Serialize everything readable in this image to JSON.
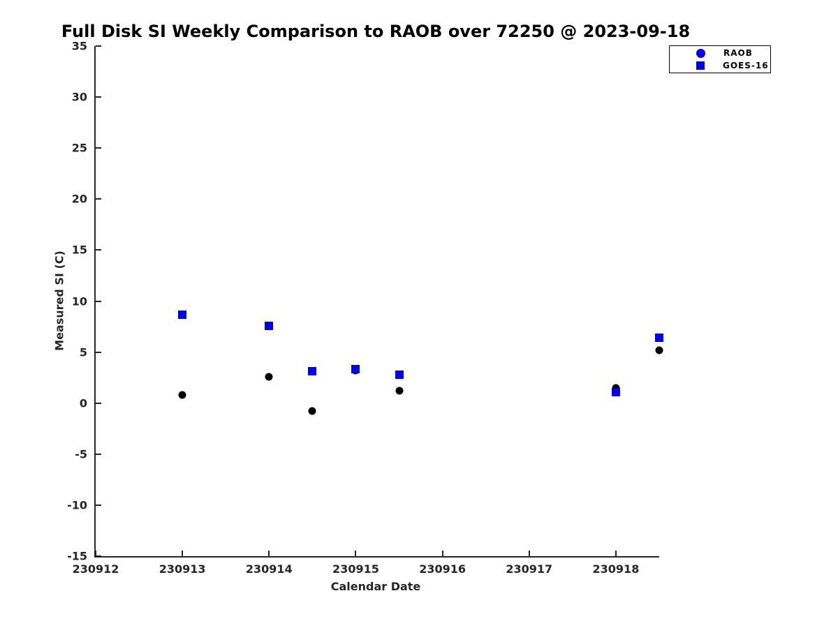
{
  "title": "Full Disk SI Weekly Comparison to RAOB over 72250 @ 2023-09-18",
  "legend": {
    "items": [
      {
        "label": "RAOB",
        "marker": "circle",
        "color": "#0000ee"
      },
      {
        "label": "GOES-16",
        "marker": "square",
        "color": "#0000ee"
      }
    ]
  },
  "chart_data": {
    "type": "scatter",
    "title": "Full Disk SI Weekly Comparison to RAOB over 72250 @ 2023-09-18",
    "xlabel": "Calendar Date",
    "ylabel": "Measured SI (C)",
    "xlim": [
      230912,
      230918.5
    ],
    "ylim": [
      -15,
      35
    ],
    "x_ticks": [
      230912,
      230913,
      230914,
      230915,
      230916,
      230917,
      230918
    ],
    "y_ticks": [
      -15,
      -10,
      -5,
      0,
      5,
      10,
      15,
      20,
      25,
      30,
      35
    ],
    "grid": false,
    "legend_position": "outside-top-right",
    "series": [
      {
        "name": "RAOB",
        "marker": "circle",
        "color": "#000000",
        "size": 11,
        "points": [
          {
            "x": 230913.0,
            "y": 0.8
          },
          {
            "x": 230914.0,
            "y": 2.6
          },
          {
            "x": 230914.5,
            "y": -0.8
          },
          {
            "x": 230915.0,
            "y": 3.2
          },
          {
            "x": 230915.5,
            "y": 1.2
          },
          {
            "x": 230918.0,
            "y": 1.5
          },
          {
            "x": 230918.5,
            "y": 5.2
          }
        ]
      },
      {
        "name": "GOES-16",
        "marker": "square",
        "color": "#0000ee",
        "size": 12,
        "points": [
          {
            "x": 230913.0,
            "y": 8.7
          },
          {
            "x": 230914.0,
            "y": 7.6
          },
          {
            "x": 230914.5,
            "y": 3.1
          },
          {
            "x": 230915.0,
            "y": 3.3
          },
          {
            "x": 230915.5,
            "y": 2.8
          },
          {
            "x": 230918.0,
            "y": 1.1
          },
          {
            "x": 230918.5,
            "y": 6.4
          }
        ]
      }
    ]
  }
}
